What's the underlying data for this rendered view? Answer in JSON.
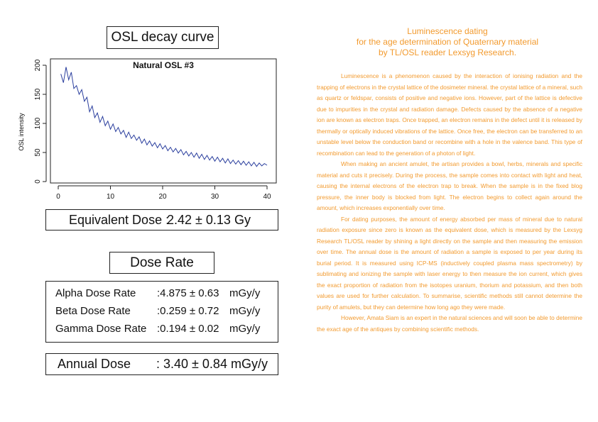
{
  "left": {
    "osl_title": "OSL decay curve",
    "equivalent_dose": {
      "label": "Equivalent Dose :",
      "value": "2.42 ± 0.13 Gy"
    },
    "dose_rate_title": "Dose Rate",
    "rates": [
      {
        "label": "Alpha Dose Rate",
        "value": ":4.875 ± 0.63",
        "unit": "mGy/y"
      },
      {
        "label": "Beta Dose Rate",
        "value": ":0.259 ± 0.72",
        "unit": "mGy/y"
      },
      {
        "label": "Gamma Dose Rate",
        "value": ":0.194 ± 0.02",
        "unit": "mGy/y"
      }
    ],
    "annual_dose": {
      "label": "Annual Dose",
      "value": ": 3.40 ± 0.84 mGy/y"
    }
  },
  "chart_data": {
    "type": "line",
    "title": "Natural OSL #3",
    "xlabel": "",
    "ylabel": "OSL intensity",
    "xlim": [
      0,
      40
    ],
    "ylim": [
      0,
      200
    ],
    "xticks": [
      0,
      10,
      20,
      30,
      40
    ],
    "yticks": [
      0,
      50,
      100,
      150,
      200
    ],
    "grid": false,
    "color": "#2b3f9e",
    "series": [
      {
        "x": [
          0.5,
          1,
          1.5,
          2,
          2.5,
          3,
          3.5,
          4,
          4.5,
          5,
          5.5,
          6,
          6.5,
          7,
          7.5,
          8,
          8.5,
          9,
          9.5,
          10,
          10.5,
          11,
          11.5,
          12,
          12.5,
          13,
          13.5,
          14,
          14.5,
          15,
          15.5,
          16,
          16.5,
          17,
          17.5,
          18,
          18.5,
          19,
          19.5,
          20,
          20.5,
          21,
          21.5,
          22,
          22.5,
          23,
          23.5,
          24,
          24.5,
          25,
          25.5,
          26,
          26.5,
          27,
          27.5,
          28,
          28.5,
          29,
          29.5,
          30,
          30.5,
          31,
          31.5,
          32,
          32.5,
          33,
          33.5,
          34,
          34.5,
          35,
          35.5,
          36,
          36.5,
          37,
          37.5,
          38,
          38.5,
          39,
          39.5,
          40
        ],
        "y": [
          185,
          170,
          197,
          175,
          188,
          160,
          165,
          150,
          158,
          138,
          145,
          120,
          130,
          110,
          118,
          102,
          112,
          96,
          104,
          90,
          99,
          86,
          93,
          82,
          88,
          76,
          85,
          74,
          80,
          71,
          77,
          66,
          73,
          63,
          70,
          61,
          67,
          58,
          65,
          56,
          62,
          53,
          59,
          51,
          57,
          49,
          55,
          46,
          52,
          44,
          50,
          42,
          49,
          40,
          47,
          38,
          45,
          37,
          43,
          35,
          42,
          34,
          40,
          32,
          39,
          31,
          37,
          30,
          36,
          29,
          35,
          28,
          34,
          27,
          33,
          26,
          32,
          27,
          31,
          28
        ]
      }
    ]
  },
  "article": {
    "title_lines": [
      "Luminescence dating",
      "for the age determination of Quaternary material",
      "by TL/OSL reader Lexsyg Research."
    ],
    "paragraphs": [
      "Luminescence is a phenomenon caused by the interaction of ionising radiation and the trapping of electrons in the crystal lattice of the dosimeter mineral. the crystal lattice of a mineral, such as quartz or feldspar, consists of positive and negative ions. However, part of the lattice is defective due to impurities in the crystal and radiation damage. Defects caused by the absence of a negative ion are known as electron traps. Once trapped, an electron remains in the defect until it is released by thermally or optically induced vibrations of the lattice. Once free, the electron can be transferred to an unstable level below the conduction band or recombine with a hole in the valence band. This type of recombination can lead to the generation of a photon of light.",
      "When making an ancient amulet, the artisan provides a bowl, herbs, minerals and specific material and cuts it precisely. During the process, the sample comes into contact with light and heat, causing the internal electrons of the electron trap to break. When the sample is in the fixed blog pressure, the inner body is blocked from light. The electron begins to collect again around the amount, which increases exponentially over time.",
      "For dating purposes, the amount of energy absorbed per mass of mineral due to natural radiation exposure since zero is known as the equivalent dose, which is measured by the Lexsyg Research TL/OSL reader by shining a light directly on the sample and then measuring the emission over time. The annual dose is the amount of radiation a sample is exposed to per year during its burial period. It is measured using ICP-MS (inductively coupled plasma mass spectrometry) by sublimating and ionizing the sample with laser energy to then measure the ion current, which gives the exact proportion of radiation from the isotopes uranium, thorium and potassium, and then both values are used for further calculation. To summarise, scientific methods still cannot determine the purity of amulets, but they can determine how long ago they were made.",
      "However, Amata Siam is an expert in the natural sciences and will soon be able to determine the exact age of the antiques by combining scientific methods."
    ]
  }
}
